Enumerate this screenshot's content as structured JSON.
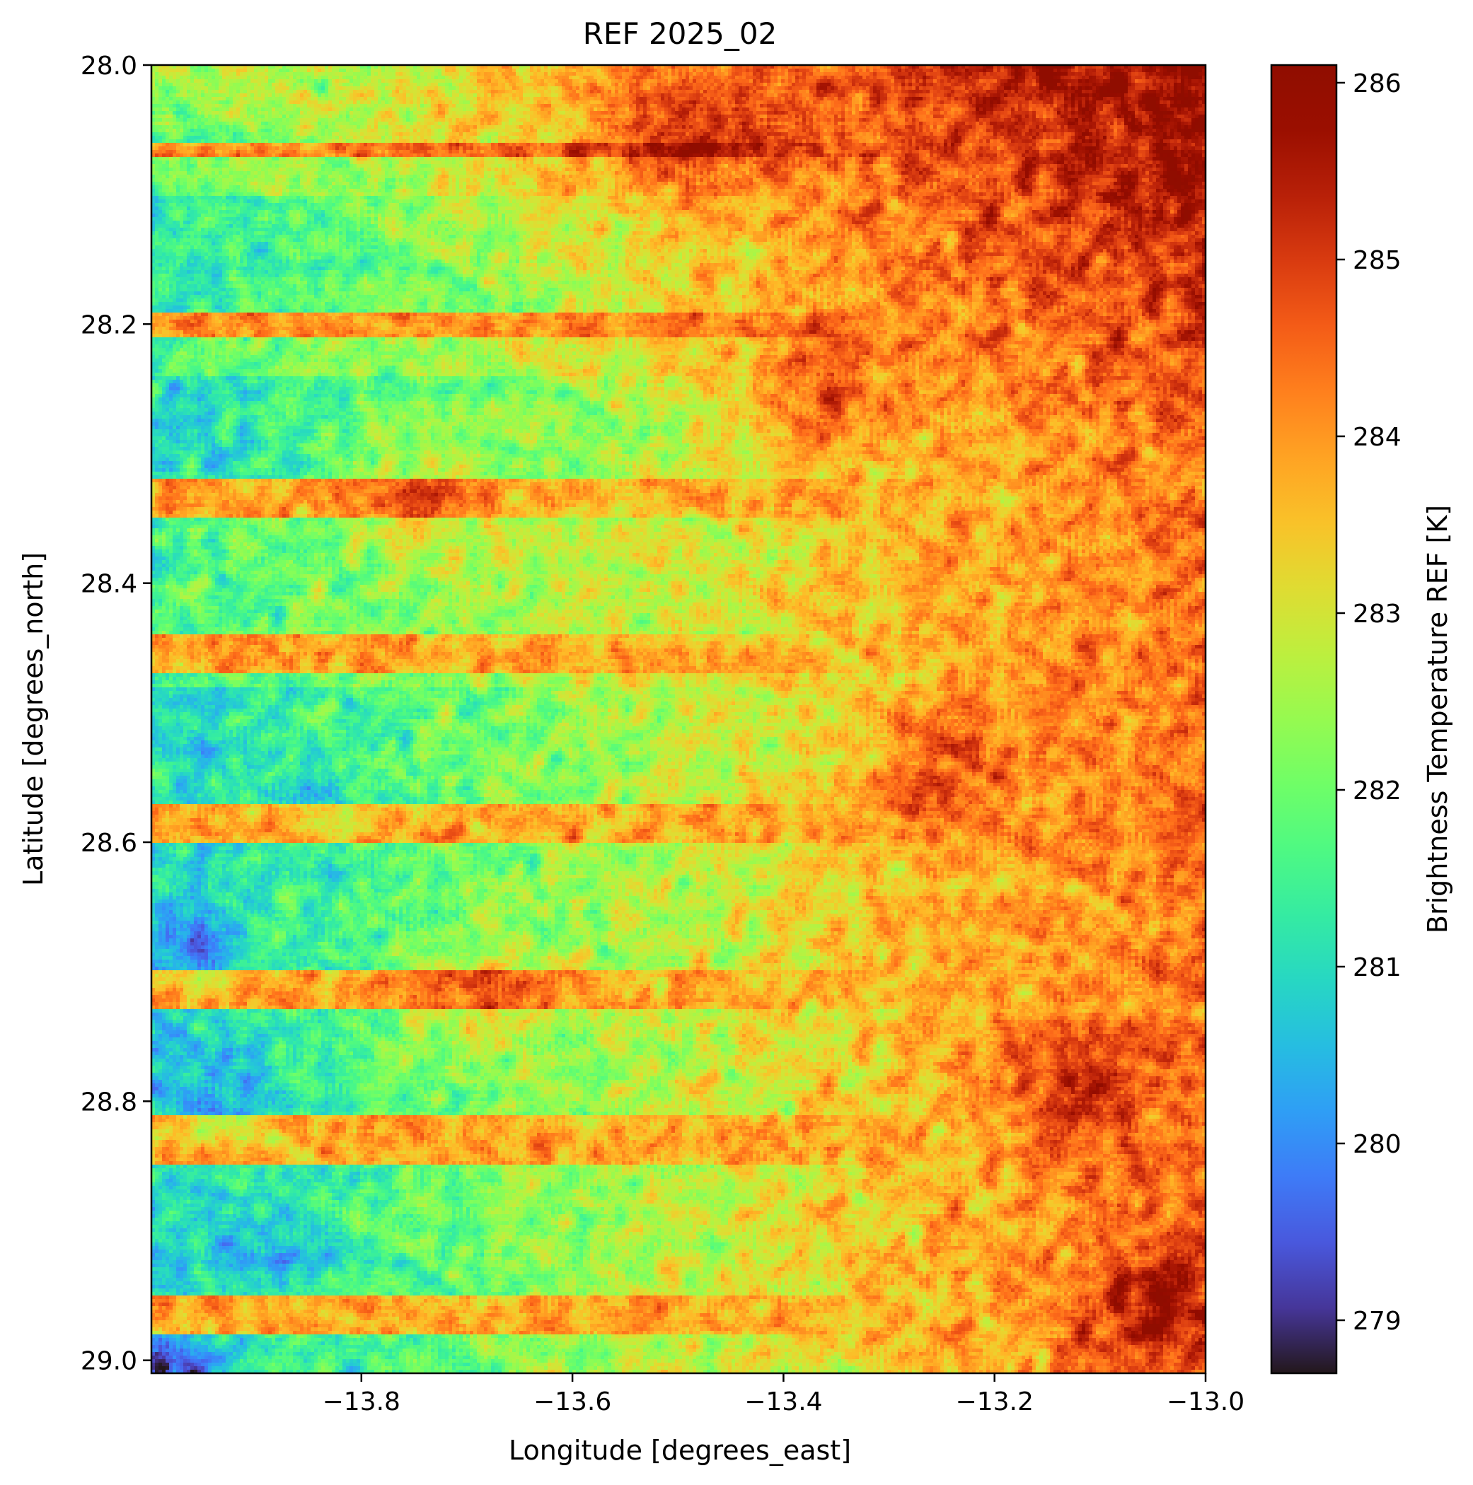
{
  "chart_data": {
    "type": "heatmap",
    "title": "REF 2025_02",
    "xlabel": "Longitude [degrees_east]",
    "ylabel": "Latitude [degrees_north]",
    "xlim": [
      -13.999,
      -13.0
    ],
    "ylim": [
      29.01,
      28.0
    ],
    "x_ticks": [
      {
        "value": -13.8,
        "label": "−13.8"
      },
      {
        "value": -13.6,
        "label": "−13.6"
      },
      {
        "value": -13.4,
        "label": "−13.4"
      },
      {
        "value": -13.2,
        "label": "−13.2"
      },
      {
        "value": -13.0,
        "label": "−13.0"
      }
    ],
    "y_ticks": [
      {
        "value": 28.0,
        "label": "28.0"
      },
      {
        "value": 28.2,
        "label": "28.2"
      },
      {
        "value": 28.4,
        "label": "28.4"
      },
      {
        "value": 28.6,
        "label": "28.6"
      },
      {
        "value": 28.8,
        "label": "28.8"
      },
      {
        "value": 29.0,
        "label": "29.0"
      }
    ],
    "colorbar": {
      "label": "Brightness Temperature REF [K]",
      "colormap": "turbo",
      "vmin": 278.7,
      "vmax": 286.1,
      "ticks": [
        {
          "value": 279,
          "label": "279"
        },
        {
          "value": 280,
          "label": "280"
        },
        {
          "value": 281,
          "label": "281"
        },
        {
          "value": 282,
          "label": "282"
        },
        {
          "value": 283,
          "label": "283"
        },
        {
          "value": 284,
          "label": "284"
        },
        {
          "value": 285,
          "label": "285"
        },
        {
          "value": 286,
          "label": "286"
        }
      ]
    },
    "grid": false,
    "field_summary": {
      "typical_range": [
        279.5,
        286.0
      ],
      "pattern": "cooler values (about 280–282 K) across the western longitudes, warmer values (about 284–286 K) toward the east and north; horizontal scan-line striping",
      "warm_stripes_lat": [
        [
          28.06,
          28.07
        ],
        [
          28.19,
          28.21
        ],
        [
          28.32,
          28.35
        ],
        [
          28.44,
          28.47
        ],
        [
          28.57,
          28.6
        ],
        [
          28.7,
          28.73
        ],
        [
          28.81,
          28.85
        ],
        [
          28.95,
          28.98
        ]
      ],
      "cool_stripes_lat": [
        [
          28.1,
          28.19
        ],
        [
          28.24,
          28.32
        ],
        [
          28.48,
          28.57
        ],
        [
          28.6,
          28.7
        ],
        [
          28.73,
          28.81
        ],
        [
          28.85,
          28.95
        ],
        [
          28.98,
          29.01
        ]
      ],
      "hotspots": [
        {
          "lon": -13.49,
          "lat": 28.05,
          "value": 285.8
        },
        {
          "lon": -13.36,
          "lat": 28.25,
          "value": 285.6
        },
        {
          "lon": -13.25,
          "lat": 28.55,
          "value": 285.7
        },
        {
          "lon": -13.12,
          "lat": 28.79,
          "value": 285.6
        },
        {
          "lon": -13.05,
          "lat": 28.96,
          "value": 285.9
        },
        {
          "lon": -13.69,
          "lat": 28.72,
          "value": 285.6
        },
        {
          "lon": -13.75,
          "lat": 28.33,
          "value": 285.5
        }
      ],
      "coldspots": [
        {
          "lon": -13.99,
          "lat": 29.01,
          "value": 279.0
        },
        {
          "lon": -13.92,
          "lat": 28.8,
          "value": 280.0
        },
        {
          "lon": -13.96,
          "lat": 28.68,
          "value": 279.8
        },
        {
          "lon": -13.83,
          "lat": 28.57,
          "value": 280.4
        },
        {
          "lon": -13.88,
          "lat": 28.92,
          "value": 280.2
        }
      ]
    }
  }
}
